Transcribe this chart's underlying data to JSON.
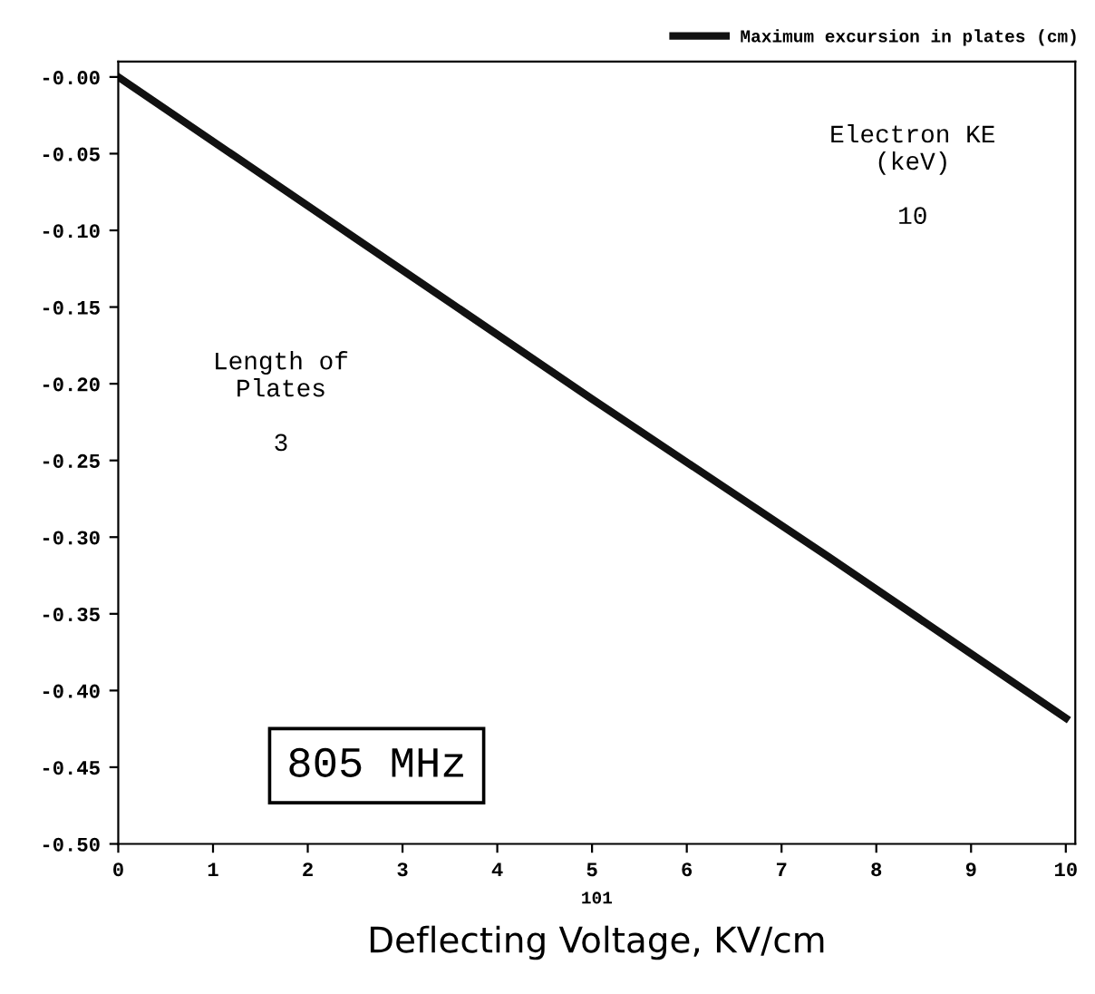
{
  "chart_data": {
    "type": "line",
    "xlabel": "Deflecting Voltage, KV/cm",
    "x": [
      0,
      2.5,
      5,
      7.5,
      10
    ],
    "series": [
      {
        "name": "Maximum excursion in plates (cm)",
        "color": "#111111",
        "values": [
          0,
          -0.105,
          -0.21,
          -0.313,
          -0.418
        ]
      }
    ],
    "xlim": [
      0,
      10.1
    ],
    "ylim": [
      -0.5,
      0.01
    ],
    "xticks": [
      0,
      1,
      2,
      3,
      4,
      5,
      6,
      7,
      8,
      9,
      10
    ],
    "yticks": [
      {
        "value": 0,
        "label": "-0.00"
      },
      {
        "value": -0.05,
        "label": "-0.05"
      },
      {
        "value": -0.1,
        "label": "-0.10"
      },
      {
        "value": -0.15,
        "label": "-0.15"
      },
      {
        "value": -0.2,
        "label": "-0.20"
      },
      {
        "value": -0.25,
        "label": "-0.25"
      },
      {
        "value": -0.3,
        "label": "-0.30"
      },
      {
        "value": -0.35,
        "label": "-0.35"
      },
      {
        "value": -0.4,
        "label": "-0.40"
      },
      {
        "value": -0.45,
        "label": "-0.45"
      },
      {
        "value": -0.5,
        "label": "-0.50"
      }
    ],
    "annotations": [
      "Electron KE\n(keV)\n\n10",
      "Length of\nPlates\n\n3",
      "805 MHz",
      "101"
    ],
    "legend": "top right",
    "grid": false,
    "marker": "none",
    "line_style": "solid"
  }
}
